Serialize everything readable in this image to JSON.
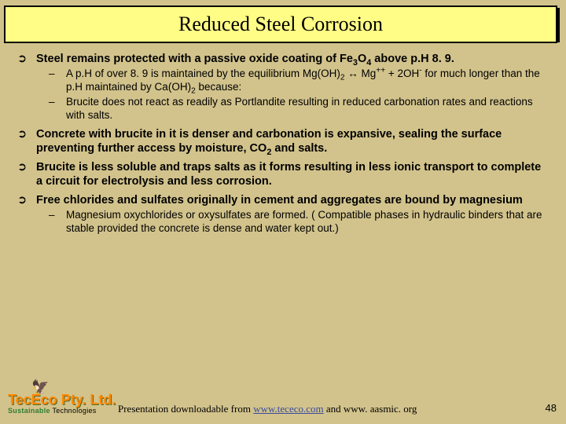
{
  "colors": {
    "background": "#d2c38c",
    "titleFill": "#fffd86",
    "titleBorder": "#000000",
    "link": "#374a9c",
    "brand": "#ff8800"
  },
  "title": "Reduced Steel Corrosion",
  "bullets": {
    "b1": "Steel remains protected with a passive oxide coating of Fe₃O₄ above p.H 8. 9.",
    "b1s1": "A p.H of over 8. 9 is maintained by the equilibrium Mg(OH)₂ ↔ Mg⁺⁺ + 2OH⁻ for much longer than the p.H maintained by Ca(OH)₂ because:",
    "b1s2": "Brucite does not react as readily as Portlandite resulting in reduced carbonation rates and reactions with salts.",
    "b2": "Concrete with brucite in it is denser and carbonation is expansive, sealing the surface preventing further access by moisture, CO₂ and salts.",
    "b3": "Brucite is less soluble and traps salts as it forms resulting in less ionic transport to complete a circuit for electrolysis and less corrosion.",
    "b4": "Free chlorides and sulfates originally in cement and aggregates are bound by magnesium",
    "b4s1": "Magnesium oxychlorides or oxysulfates are formed. ( Compatible phases in hydraulic binders that are stable provided the concrete is dense and water kept out.)"
  },
  "footer": {
    "brand": "TecEco Pty. Ltd.",
    "tag1": "Sustainable",
    "tag2": " Technologies",
    "download_prefix": "Presentation downloadable from ",
    "link": "www.tececo.com",
    "download_suffix": " and www. aasmic. org",
    "page": "48"
  }
}
